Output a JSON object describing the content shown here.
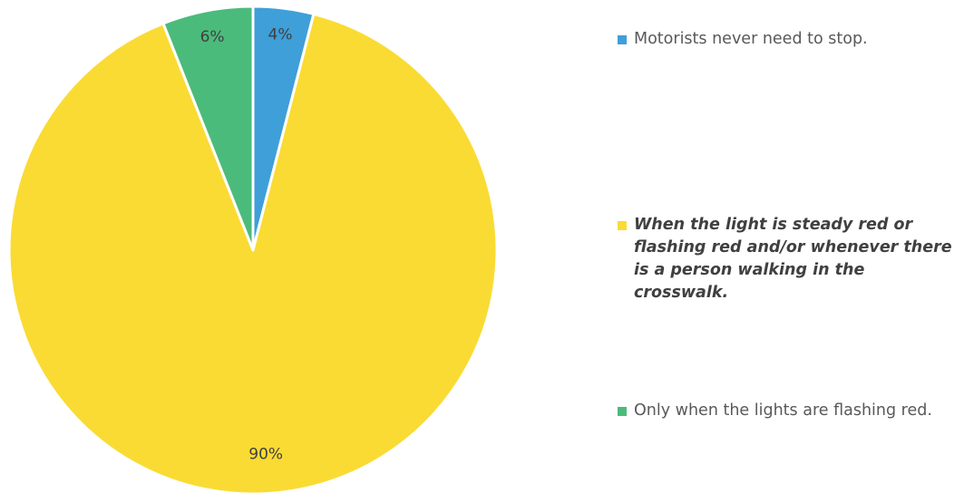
{
  "chart_data": {
    "type": "pie",
    "title": "",
    "categories": [
      "Motorists never need to stop.",
      "When the light is steady red or flashing red and/or whenever there is a person walking in the crosswalk.",
      "Only when the lights are flashing red."
    ],
    "values": [
      4,
      90,
      6
    ],
    "data_labels": [
      "4%",
      "90%",
      "6%"
    ],
    "colors": [
      "#3f9fd9",
      "#fadb33",
      "#4bbb7b"
    ],
    "highlighted_category_index": 1,
    "legend_position": "right",
    "start_angle": "top, clockwise"
  },
  "legend": {
    "items": [
      {
        "label": "Motorists never need to stop.",
        "color": "#3f9fd9",
        "emphasized": false
      },
      {
        "label": "When the light is steady red or flashing red and/or whenever there is a person walking in the crosswalk.",
        "color": "#fadb33",
        "emphasized": true
      },
      {
        "label": "Only when the lights are flashing red.",
        "color": "#4bbb7b",
        "emphasized": false
      }
    ]
  }
}
